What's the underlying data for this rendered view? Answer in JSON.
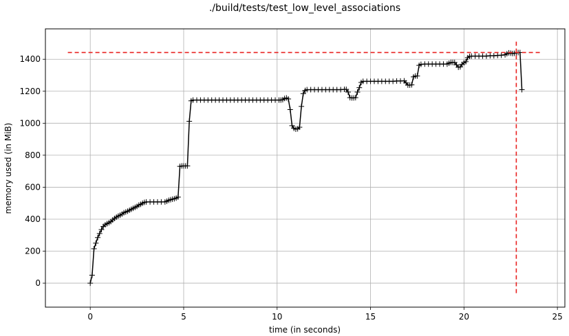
{
  "chart_data": {
    "type": "line",
    "title": "./build/tests/test_low_level_associations",
    "xlabel": "time (in seconds)",
    "ylabel": "memory used (in MiB)",
    "xlim": [
      -2.4,
      25.4
    ],
    "ylim": [
      -150,
      1590
    ],
    "xticks": [
      0,
      5,
      10,
      15,
      20,
      25
    ],
    "yticks": [
      0,
      200,
      400,
      600,
      800,
      1000,
      1200,
      1400
    ],
    "grid": true,
    "marker": "+",
    "series": [
      {
        "color": "#000000",
        "points": [
          [
            0.0,
            0
          ],
          [
            0.1,
            50
          ],
          [
            0.2,
            215
          ],
          [
            0.3,
            250
          ],
          [
            0.4,
            285
          ],
          [
            0.5,
            310
          ],
          [
            0.6,
            335
          ],
          [
            0.7,
            355
          ],
          [
            0.8,
            365
          ],
          [
            0.9,
            372
          ],
          [
            1.0,
            378
          ],
          [
            1.1,
            385
          ],
          [
            1.2,
            395
          ],
          [
            1.3,
            405
          ],
          [
            1.4,
            413
          ],
          [
            1.5,
            420
          ],
          [
            1.6,
            425
          ],
          [
            1.7,
            432
          ],
          [
            1.8,
            440
          ],
          [
            1.9,
            445
          ],
          [
            2.0,
            450
          ],
          [
            2.1,
            456
          ],
          [
            2.2,
            462
          ],
          [
            2.3,
            468
          ],
          [
            2.4,
            474
          ],
          [
            2.5,
            480
          ],
          [
            2.6,
            488
          ],
          [
            2.7,
            493
          ],
          [
            2.8,
            500
          ],
          [
            2.9,
            505
          ],
          [
            3.0,
            508
          ],
          [
            3.2,
            508
          ],
          [
            3.4,
            508
          ],
          [
            3.6,
            508
          ],
          [
            3.8,
            508
          ],
          [
            4.0,
            508
          ],
          [
            4.1,
            512
          ],
          [
            4.2,
            518
          ],
          [
            4.3,
            522
          ],
          [
            4.4,
            525
          ],
          [
            4.5,
            528
          ],
          [
            4.6,
            532
          ],
          [
            4.7,
            538
          ],
          [
            4.8,
            730
          ],
          [
            4.9,
            733
          ],
          [
            5.0,
            733
          ],
          [
            5.1,
            733
          ],
          [
            5.2,
            733
          ],
          [
            5.3,
            1012
          ],
          [
            5.4,
            1140
          ],
          [
            5.5,
            1145
          ],
          [
            5.7,
            1145
          ],
          [
            5.9,
            1145
          ],
          [
            6.1,
            1145
          ],
          [
            6.3,
            1145
          ],
          [
            6.5,
            1145
          ],
          [
            6.7,
            1145
          ],
          [
            6.9,
            1145
          ],
          [
            7.1,
            1145
          ],
          [
            7.3,
            1145
          ],
          [
            7.5,
            1145
          ],
          [
            7.7,
            1145
          ],
          [
            7.9,
            1145
          ],
          [
            8.1,
            1145
          ],
          [
            8.3,
            1145
          ],
          [
            8.5,
            1145
          ],
          [
            8.7,
            1145
          ],
          [
            8.9,
            1145
          ],
          [
            9.1,
            1145
          ],
          [
            9.3,
            1145
          ],
          [
            9.5,
            1145
          ],
          [
            9.7,
            1145
          ],
          [
            9.9,
            1145
          ],
          [
            10.1,
            1145
          ],
          [
            10.2,
            1145
          ],
          [
            10.3,
            1147
          ],
          [
            10.4,
            1155
          ],
          [
            10.5,
            1158
          ],
          [
            10.6,
            1152
          ],
          [
            10.7,
            1085
          ],
          [
            10.8,
            985
          ],
          [
            10.9,
            968
          ],
          [
            11.0,
            963
          ],
          [
            11.1,
            965
          ],
          [
            11.2,
            975
          ],
          [
            11.3,
            1105
          ],
          [
            11.4,
            1185
          ],
          [
            11.5,
            1205
          ],
          [
            11.6,
            1210
          ],
          [
            11.8,
            1210
          ],
          [
            12.0,
            1210
          ],
          [
            12.2,
            1210
          ],
          [
            12.4,
            1210
          ],
          [
            12.6,
            1210
          ],
          [
            12.8,
            1210
          ],
          [
            13.0,
            1210
          ],
          [
            13.2,
            1210
          ],
          [
            13.4,
            1210
          ],
          [
            13.6,
            1212
          ],
          [
            13.7,
            1212
          ],
          [
            13.8,
            1195
          ],
          [
            13.9,
            1160
          ],
          [
            14.0,
            1158
          ],
          [
            14.1,
            1158
          ],
          [
            14.2,
            1160
          ],
          [
            14.3,
            1195
          ],
          [
            14.4,
            1222
          ],
          [
            14.5,
            1255
          ],
          [
            14.6,
            1262
          ],
          [
            14.8,
            1262
          ],
          [
            15.0,
            1262
          ],
          [
            15.2,
            1262
          ],
          [
            15.4,
            1262
          ],
          [
            15.6,
            1262
          ],
          [
            15.8,
            1262
          ],
          [
            16.0,
            1262
          ],
          [
            16.2,
            1262
          ],
          [
            16.4,
            1264
          ],
          [
            16.6,
            1264
          ],
          [
            16.8,
            1265
          ],
          [
            16.9,
            1252
          ],
          [
            17.0,
            1238
          ],
          [
            17.1,
            1238
          ],
          [
            17.2,
            1240
          ],
          [
            17.3,
            1290
          ],
          [
            17.4,
            1295
          ],
          [
            17.5,
            1295
          ],
          [
            17.6,
            1362
          ],
          [
            17.7,
            1368
          ],
          [
            17.9,
            1370
          ],
          [
            18.1,
            1370
          ],
          [
            18.3,
            1370
          ],
          [
            18.5,
            1370
          ],
          [
            18.7,
            1370
          ],
          [
            18.9,
            1370
          ],
          [
            19.1,
            1370
          ],
          [
            19.2,
            1375
          ],
          [
            19.3,
            1380
          ],
          [
            19.4,
            1380
          ],
          [
            19.5,
            1380
          ],
          [
            19.6,
            1365
          ],
          [
            19.7,
            1350
          ],
          [
            19.8,
            1352
          ],
          [
            19.9,
            1368
          ],
          [
            20.0,
            1378
          ],
          [
            20.1,
            1385
          ],
          [
            20.2,
            1410
          ],
          [
            20.3,
            1418
          ],
          [
            20.4,
            1420
          ],
          [
            20.6,
            1420
          ],
          [
            20.8,
            1420
          ],
          [
            21.0,
            1420
          ],
          [
            21.2,
            1420
          ],
          [
            21.4,
            1422
          ],
          [
            21.6,
            1422
          ],
          [
            21.8,
            1424
          ],
          [
            22.0,
            1425
          ],
          [
            22.2,
            1428
          ],
          [
            22.3,
            1435
          ],
          [
            22.4,
            1440
          ],
          [
            22.5,
            1438
          ],
          [
            22.6,
            1436
          ],
          [
            22.7,
            1437
          ],
          [
            22.8,
            1440
          ],
          [
            22.9,
            1442
          ],
          [
            23.0,
            1442
          ],
          [
            23.1,
            1210
          ]
        ]
      }
    ],
    "max_marker": {
      "x": 22.8,
      "y": 1442,
      "color": "#e8201f",
      "hline_xrange": [
        -1.2,
        24.2
      ],
      "vline_yrange": [
        -70,
        1510
      ]
    }
  }
}
